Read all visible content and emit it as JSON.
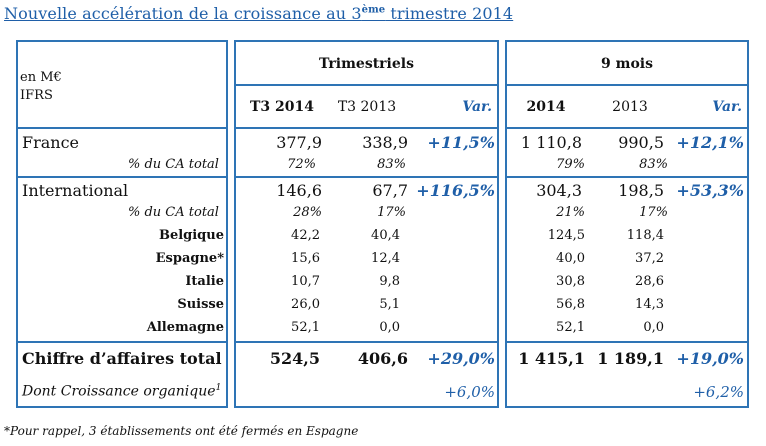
{
  "title": {
    "prefix": "Nouvelle accélération de la croissance au 3",
    "sup": "ème",
    "suffix": " trimestre 2014"
  },
  "header": {
    "unit_line1": "en M€",
    "unit_line2": "IFRS",
    "group_quarterly": "Trimestriels",
    "group_ninemonths": "9 mois",
    "cols": [
      "T3 2014",
      "T3 2013",
      "Var.",
      "2014",
      "2013",
      "Var."
    ]
  },
  "rows": {
    "france": {
      "label": "France",
      "values": [
        "377,9",
        "338,9",
        "+11,5%",
        "1 110,8",
        "990,5",
        "+12,1%"
      ]
    },
    "france_pct": {
      "label": "% du CA total",
      "values": [
        "72%",
        "83%",
        "",
        "79%",
        "83%",
        ""
      ]
    },
    "international": {
      "label": "International",
      "values": [
        "146,6",
        "67,7",
        "+116,5%",
        "304,3",
        "198,5",
        "+53,3%"
      ]
    },
    "international_pct": {
      "label": "% du CA total",
      "values": [
        "28%",
        "17%",
        "",
        "21%",
        "17%",
        ""
      ]
    },
    "belgique": {
      "label": "Belgique",
      "values": [
        "42,2",
        "40,4",
        "",
        "124,5",
        "118,4",
        ""
      ]
    },
    "espagne": {
      "label": "Espagne*",
      "values": [
        "15,6",
        "12,4",
        "",
        "40,0",
        "37,2",
        ""
      ]
    },
    "italie": {
      "label": "Italie",
      "values": [
        "10,7",
        "9,8",
        "",
        "30,8",
        "28,6",
        ""
      ]
    },
    "suisse": {
      "label": "Suisse",
      "values": [
        "26,0",
        "5,1",
        "",
        "56,8",
        "14,3",
        ""
      ]
    },
    "allemagne": {
      "label": "Allemagne",
      "values": [
        "52,1",
        "0,0",
        "",
        "52,1",
        "0,0",
        ""
      ]
    },
    "total": {
      "label": "Chiffre d’affaires total",
      "values": [
        "524,5",
        "406,6",
        "+29,0%",
        "1 415,1",
        "1 189,1",
        "+19,0%"
      ]
    },
    "organic": {
      "label": "Dont Croissance organique",
      "sup": "1",
      "values": [
        "",
        "",
        "+6,0%",
        "",
        "",
        "+6,2%"
      ]
    }
  },
  "footnote": "*Pour rappel, 3 établissements ont été fermés en Espagne",
  "colors": {
    "border": "#2e74b5",
    "title": "#1f5fa8",
    "variation": "#1f5fa8"
  }
}
